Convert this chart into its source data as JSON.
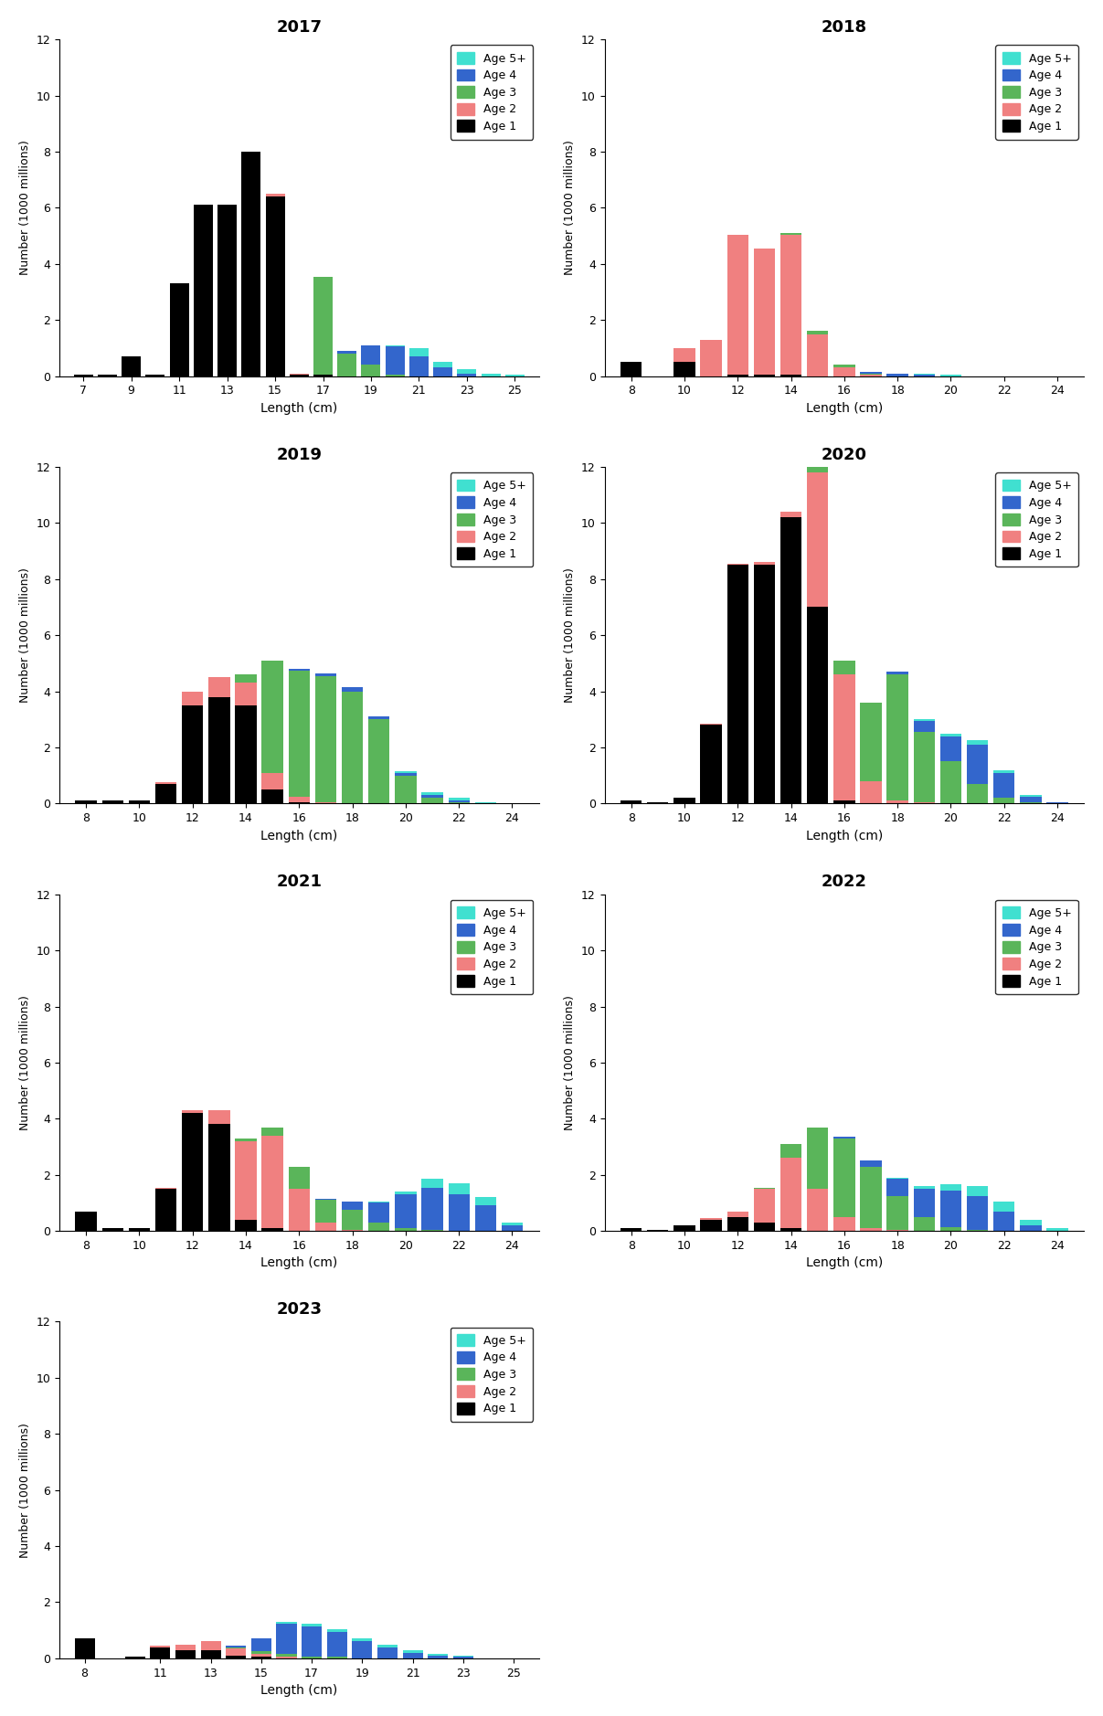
{
  "years": [
    2017,
    2018,
    2019,
    2020,
    2021,
    2022,
    2023
  ],
  "colors": {
    "Age 1": "#000000",
    "Age 2": "#f08080",
    "Age 3": "#5ab55a",
    "Age 4": "#3366cc",
    "Age 5+": "#40e0d0"
  },
  "ylabel": "Number (1000 millions)",
  "xlabel": "Length (cm)",
  "ylim": [
    0,
    12
  ],
  "yticks": [
    0,
    2,
    4,
    6,
    8,
    10,
    12
  ],
  "data": {
    "2017": {
      "lengths": [
        7,
        8,
        9,
        10,
        11,
        12,
        13,
        14,
        15,
        16,
        17,
        18,
        19,
        20,
        21,
        22,
        23,
        24,
        25
      ],
      "Age 1": [
        0.05,
        0.05,
        0.7,
        0.05,
        3.3,
        6.1,
        6.1,
        8.0,
        6.4,
        0.05,
        0.05,
        0.0,
        0.0,
        0.0,
        0.0,
        0.0,
        0.0,
        0.0,
        0.0
      ],
      "Age 2": [
        0.0,
        0.0,
        0.0,
        0.0,
        0.0,
        0.0,
        0.0,
        0.0,
        0.1,
        0.05,
        0.0,
        0.0,
        0.0,
        0.0,
        0.0,
        0.0,
        0.0,
        0.0,
        0.0
      ],
      "Age 3": [
        0.0,
        0.0,
        0.0,
        0.0,
        0.0,
        0.0,
        0.0,
        0.0,
        0.0,
        0.0,
        3.5,
        0.8,
        0.4,
        0.05,
        0.0,
        0.0,
        0.0,
        0.0,
        0.0
      ],
      "Age 4": [
        0.0,
        0.0,
        0.0,
        0.0,
        0.0,
        0.0,
        0.0,
        0.0,
        0.0,
        0.0,
        0.0,
        0.1,
        0.7,
        1.0,
        0.7,
        0.3,
        0.1,
        0.0,
        0.0
      ],
      "Age 5+": [
        0.0,
        0.0,
        0.0,
        0.0,
        0.0,
        0.0,
        0.0,
        0.0,
        0.0,
        0.0,
        0.0,
        0.0,
        0.0,
        0.05,
        0.3,
        0.2,
        0.15,
        0.1,
        0.05
      ]
    },
    "2018": {
      "lengths": [
        8,
        9,
        10,
        11,
        12,
        13,
        14,
        15,
        16,
        17,
        18,
        19,
        20,
        21,
        22,
        23,
        24
      ],
      "Age 1": [
        0.5,
        0.0,
        0.5,
        0.0,
        0.05,
        0.05,
        0.05,
        0.0,
        0.0,
        0.0,
        0.0,
        0.0,
        0.0,
        0.0,
        0.0,
        0.0,
        0.0
      ],
      "Age 2": [
        0.0,
        0.0,
        0.5,
        1.3,
        5.0,
        4.5,
        5.0,
        1.5,
        0.3,
        0.05,
        0.0,
        0.0,
        0.0,
        0.0,
        0.0,
        0.0,
        0.0
      ],
      "Age 3": [
        0.0,
        0.0,
        0.0,
        0.0,
        0.0,
        0.0,
        0.05,
        0.1,
        0.1,
        0.05,
        0.0,
        0.0,
        0.0,
        0.0,
        0.0,
        0.0,
        0.0
      ],
      "Age 4": [
        0.0,
        0.0,
        0.0,
        0.0,
        0.0,
        0.0,
        0.0,
        0.0,
        0.0,
        0.05,
        0.1,
        0.05,
        0.0,
        0.0,
        0.0,
        0.0,
        0.0
      ],
      "Age 5+": [
        0.0,
        0.0,
        0.0,
        0.0,
        0.0,
        0.0,
        0.0,
        0.0,
        0.0,
        0.0,
        0.0,
        0.05,
        0.05,
        0.0,
        0.0,
        0.0,
        0.0
      ]
    },
    "2019": {
      "lengths": [
        8,
        9,
        10,
        11,
        12,
        13,
        14,
        15,
        16,
        17,
        18,
        19,
        20,
        21,
        22,
        23,
        24
      ],
      "Age 1": [
        0.1,
        0.1,
        0.1,
        0.7,
        3.5,
        3.8,
        3.5,
        0.5,
        0.05,
        0.0,
        0.0,
        0.0,
        0.0,
        0.0,
        0.0,
        0.0,
        0.0
      ],
      "Age 2": [
        0.0,
        0.0,
        0.0,
        0.05,
        0.5,
        0.7,
        0.8,
        0.6,
        0.2,
        0.05,
        0.0,
        0.0,
        0.0,
        0.0,
        0.0,
        0.0,
        0.0
      ],
      "Age 3": [
        0.0,
        0.0,
        0.0,
        0.0,
        0.0,
        0.0,
        0.3,
        4.0,
        4.5,
        4.5,
        4.0,
        3.0,
        1.0,
        0.2,
        0.05,
        0.0,
        0.0
      ],
      "Age 4": [
        0.0,
        0.0,
        0.0,
        0.0,
        0.0,
        0.0,
        0.0,
        0.0,
        0.05,
        0.1,
        0.15,
        0.1,
        0.1,
        0.1,
        0.05,
        0.0,
        0.0
      ],
      "Age 5+": [
        0.0,
        0.0,
        0.0,
        0.0,
        0.0,
        0.0,
        0.0,
        0.0,
        0.0,
        0.0,
        0.0,
        0.0,
        0.05,
        0.1,
        0.1,
        0.05,
        0.0
      ]
    },
    "2020": {
      "lengths": [
        8,
        9,
        10,
        11,
        12,
        13,
        14,
        15,
        16,
        17,
        18,
        19,
        20,
        21,
        22,
        23,
        24
      ],
      "Age 1": [
        0.1,
        0.05,
        0.2,
        2.8,
        8.5,
        8.5,
        10.2,
        7.0,
        0.1,
        0.0,
        0.0,
        0.0,
        0.0,
        0.0,
        0.0,
        0.0,
        0.0
      ],
      "Age 2": [
        0.0,
        0.0,
        0.0,
        0.05,
        0.05,
        0.1,
        0.2,
        4.8,
        4.5,
        0.8,
        0.1,
        0.05,
        0.0,
        0.0,
        0.0,
        0.0,
        0.0
      ],
      "Age 3": [
        0.0,
        0.0,
        0.0,
        0.0,
        0.0,
        0.0,
        0.0,
        0.2,
        0.5,
        2.8,
        4.5,
        2.5,
        1.5,
        0.7,
        0.2,
        0.05,
        0.0
      ],
      "Age 4": [
        0.0,
        0.0,
        0.0,
        0.0,
        0.0,
        0.0,
        0.0,
        0.0,
        0.0,
        0.0,
        0.1,
        0.4,
        0.9,
        1.4,
        0.9,
        0.2,
        0.05
      ],
      "Age 5+": [
        0.0,
        0.0,
        0.0,
        0.0,
        0.0,
        0.0,
        0.0,
        0.0,
        0.0,
        0.0,
        0.0,
        0.05,
        0.1,
        0.15,
        0.1,
        0.05,
        0.0
      ]
    },
    "2021": {
      "lengths": [
        8,
        9,
        10,
        11,
        12,
        13,
        14,
        15,
        16,
        17,
        18,
        19,
        20,
        21,
        22,
        23,
        24
      ],
      "Age 1": [
        0.7,
        0.1,
        0.1,
        1.5,
        4.2,
        3.8,
        0.4,
        0.1,
        0.0,
        0.0,
        0.0,
        0.0,
        0.0,
        0.0,
        0.0,
        0.0,
        0.0
      ],
      "Age 2": [
        0.0,
        0.0,
        0.0,
        0.05,
        0.1,
        0.5,
        2.8,
        3.3,
        1.5,
        0.3,
        0.05,
        0.0,
        0.0,
        0.0,
        0.0,
        0.0,
        0.0
      ],
      "Age 3": [
        0.0,
        0.0,
        0.0,
        0.0,
        0.0,
        0.0,
        0.1,
        0.3,
        0.8,
        0.8,
        0.7,
        0.3,
        0.1,
        0.05,
        0.0,
        0.0,
        0.0
      ],
      "Age 4": [
        0.0,
        0.0,
        0.0,
        0.0,
        0.0,
        0.0,
        0.0,
        0.0,
        0.0,
        0.05,
        0.3,
        0.7,
        1.2,
        1.5,
        1.3,
        0.9,
        0.2
      ],
      "Age 5+": [
        0.0,
        0.0,
        0.0,
        0.0,
        0.0,
        0.0,
        0.0,
        0.0,
        0.0,
        0.0,
        0.0,
        0.05,
        0.1,
        0.3,
        0.4,
        0.3,
        0.1
      ]
    },
    "2022": {
      "lengths": [
        8,
        9,
        10,
        11,
        12,
        13,
        14,
        15,
        16,
        17,
        18,
        19,
        20,
        21,
        22,
        23,
        24
      ],
      "Age 1": [
        0.1,
        0.05,
        0.2,
        0.4,
        0.5,
        0.3,
        0.1,
        0.0,
        0.0,
        0.0,
        0.0,
        0.0,
        0.0,
        0.0,
        0.0,
        0.0,
        0.0
      ],
      "Age 2": [
        0.0,
        0.0,
        0.0,
        0.05,
        0.2,
        1.2,
        2.5,
        1.5,
        0.5,
        0.1,
        0.05,
        0.0,
        0.0,
        0.0,
        0.0,
        0.0,
        0.0
      ],
      "Age 3": [
        0.0,
        0.0,
        0.0,
        0.0,
        0.0,
        0.05,
        0.5,
        2.2,
        2.8,
        2.2,
        1.2,
        0.5,
        0.15,
        0.05,
        0.0,
        0.0,
        0.0
      ],
      "Age 4": [
        0.0,
        0.0,
        0.0,
        0.0,
        0.0,
        0.0,
        0.0,
        0.0,
        0.05,
        0.2,
        0.6,
        1.0,
        1.3,
        1.2,
        0.7,
        0.2,
        0.0
      ],
      "Age 5+": [
        0.0,
        0.0,
        0.0,
        0.0,
        0.0,
        0.0,
        0.0,
        0.0,
        0.0,
        0.0,
        0.05,
        0.1,
        0.2,
        0.35,
        0.35,
        0.2,
        0.1
      ]
    },
    "2023": {
      "lengths": [
        8,
        9,
        10,
        11,
        12,
        13,
        14,
        15,
        16,
        17,
        18,
        19,
        20,
        21,
        22,
        23,
        24,
        25
      ],
      "Age 1": [
        0.7,
        0.0,
        0.05,
        0.4,
        0.3,
        0.3,
        0.1,
        0.05,
        0.0,
        0.0,
        0.0,
        0.0,
        0.0,
        0.0,
        0.0,
        0.0,
        0.0,
        0.0
      ],
      "Age 2": [
        0.0,
        0.0,
        0.0,
        0.05,
        0.2,
        0.3,
        0.25,
        0.1,
        0.05,
        0.0,
        0.0,
        0.0,
        0.0,
        0.0,
        0.0,
        0.0,
        0.0,
        0.0
      ],
      "Age 3": [
        0.0,
        0.0,
        0.0,
        0.0,
        0.0,
        0.0,
        0.05,
        0.1,
        0.1,
        0.05,
        0.05,
        0.0,
        0.0,
        0.0,
        0.0,
        0.0,
        0.0,
        0.0
      ],
      "Age 4": [
        0.0,
        0.0,
        0.0,
        0.0,
        0.0,
        0.0,
        0.05,
        0.45,
        1.1,
        1.1,
        0.9,
        0.6,
        0.4,
        0.2,
        0.1,
        0.05,
        0.0,
        0.0
      ],
      "Age 5+": [
        0.0,
        0.0,
        0.0,
        0.0,
        0.0,
        0.0,
        0.0,
        0.0,
        0.05,
        0.1,
        0.1,
        0.1,
        0.1,
        0.1,
        0.05,
        0.05,
        0.0,
        0.0
      ]
    }
  },
  "xticks": {
    "2017": [
      7,
      9,
      11,
      13,
      15,
      17,
      19,
      21,
      23,
      25
    ],
    "2018": [
      8,
      10,
      12,
      14,
      16,
      18,
      20,
      22,
      24
    ],
    "2019": [
      8,
      10,
      12,
      14,
      16,
      18,
      20,
      22,
      24
    ],
    "2020": [
      8,
      10,
      12,
      14,
      16,
      18,
      20,
      22,
      24
    ],
    "2021": [
      8,
      10,
      12,
      14,
      16,
      18,
      20,
      22,
      24
    ],
    "2022": [
      8,
      10,
      12,
      14,
      16,
      18,
      20,
      22,
      24
    ],
    "2023": [
      8,
      11,
      13,
      15,
      17,
      19,
      21,
      23,
      25
    ]
  }
}
